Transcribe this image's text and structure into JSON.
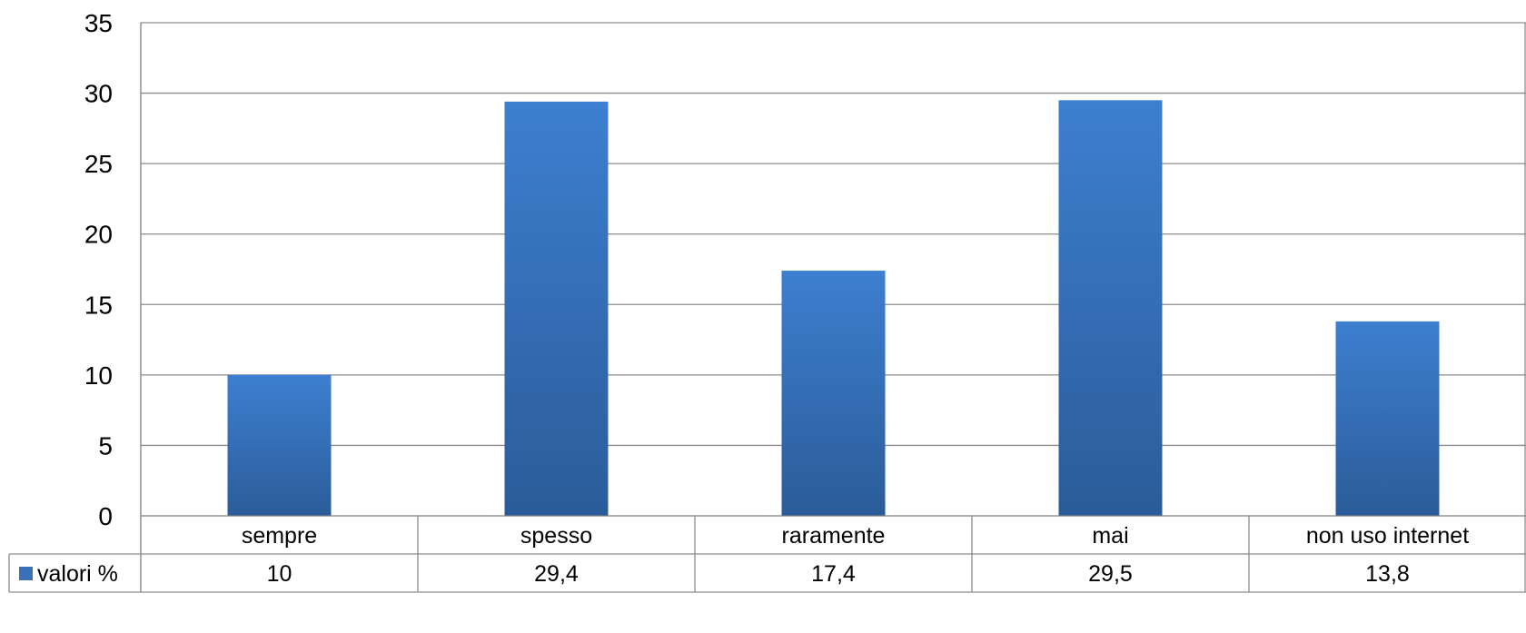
{
  "chart_data": {
    "type": "bar",
    "categories": [
      "sempre",
      "spesso",
      "raramente",
      "mai",
      "non uso internet"
    ],
    "series": [
      {
        "name": "valori %",
        "values": [
          10,
          29.4,
          17.4,
          29.5,
          13.8
        ],
        "value_labels": [
          "10",
          "29,4",
          "17,4",
          "29,5",
          "13,8"
        ]
      }
    ],
    "ylim": [
      0,
      35
    ],
    "yticks": [
      0,
      5,
      10,
      15,
      20,
      25,
      30,
      35
    ],
    "grid": true,
    "legend": "data-table",
    "data_table": true
  },
  "colors": {
    "bar_top": "#3d7fd0",
    "bar_bottom": "#2b5c99",
    "legend_key": "#3a70b8",
    "grid": "#8c8c8c",
    "axis": "#7f7f7f",
    "table_border": "#8c8c8c"
  }
}
